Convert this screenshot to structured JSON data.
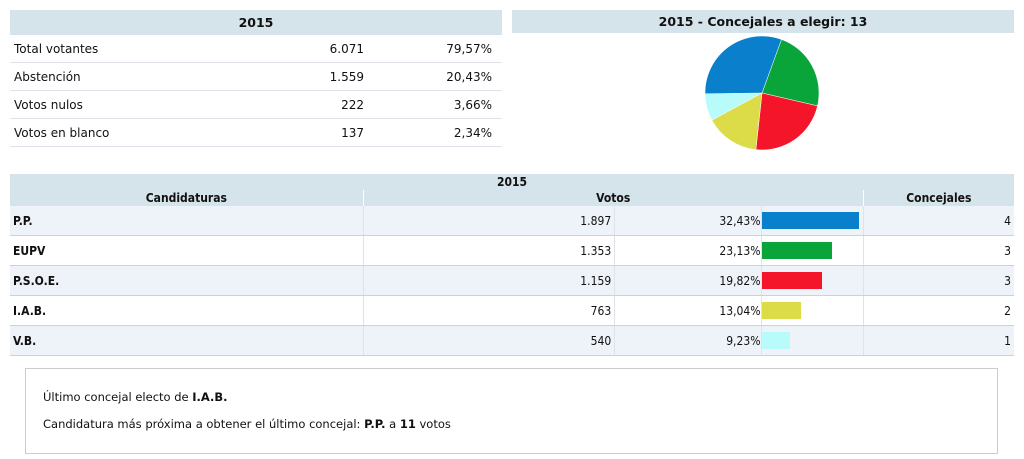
{
  "summary": {
    "title": "2015",
    "rows": [
      {
        "label": "Total votantes",
        "value": "6.071",
        "pct": "79,57%"
      },
      {
        "label": "Abstención",
        "value": "1.559",
        "pct": "20,43%"
      },
      {
        "label": "Votos nulos",
        "value": "222",
        "pct": "3,66%"
      },
      {
        "label": "Votos en blanco",
        "value": "137",
        "pct": "2,34%"
      }
    ]
  },
  "pie": {
    "title": "2015 - Concejales a elegir: 13"
  },
  "results": {
    "title": "2015",
    "headers": {
      "candidaturas": "Candidaturas",
      "votos": "Votos",
      "concejales": "Concejales"
    },
    "rows": [
      {
        "name": "P.P.",
        "votes": "1.897",
        "pct": "32,43%",
        "pct_value": 32.43,
        "seats": "4",
        "color": "#0a7fcc"
      },
      {
        "name": "EUPV",
        "votes": "1.353",
        "pct": "23,13%",
        "pct_value": 23.13,
        "seats": "3",
        "color": "#0aa53a"
      },
      {
        "name": "P.S.O.E.",
        "votes": "1.159",
        "pct": "19,82%",
        "pct_value": 19.82,
        "seats": "3",
        "color": "#f5152a"
      },
      {
        "name": "I.A.B.",
        "votes": "763",
        "pct": "13,04%",
        "pct_value": 13.04,
        "seats": "2",
        "color": "#dcdc48"
      },
      {
        "name": "V.B.",
        "votes": "540",
        "pct": "9,23%",
        "pct_value": 9.23,
        "seats": "1",
        "color": "#b8fbfb"
      }
    ]
  },
  "note": {
    "line1_prefix": "Último concejal electo de ",
    "line1_party": "I.A.B.",
    "line2_prefix": "Candidatura más próxima a obtener el último concejal: ",
    "line2_party": "P.P.",
    "line2_mid": " a ",
    "line2_votes": "11",
    "line2_suffix": " votos"
  }
}
